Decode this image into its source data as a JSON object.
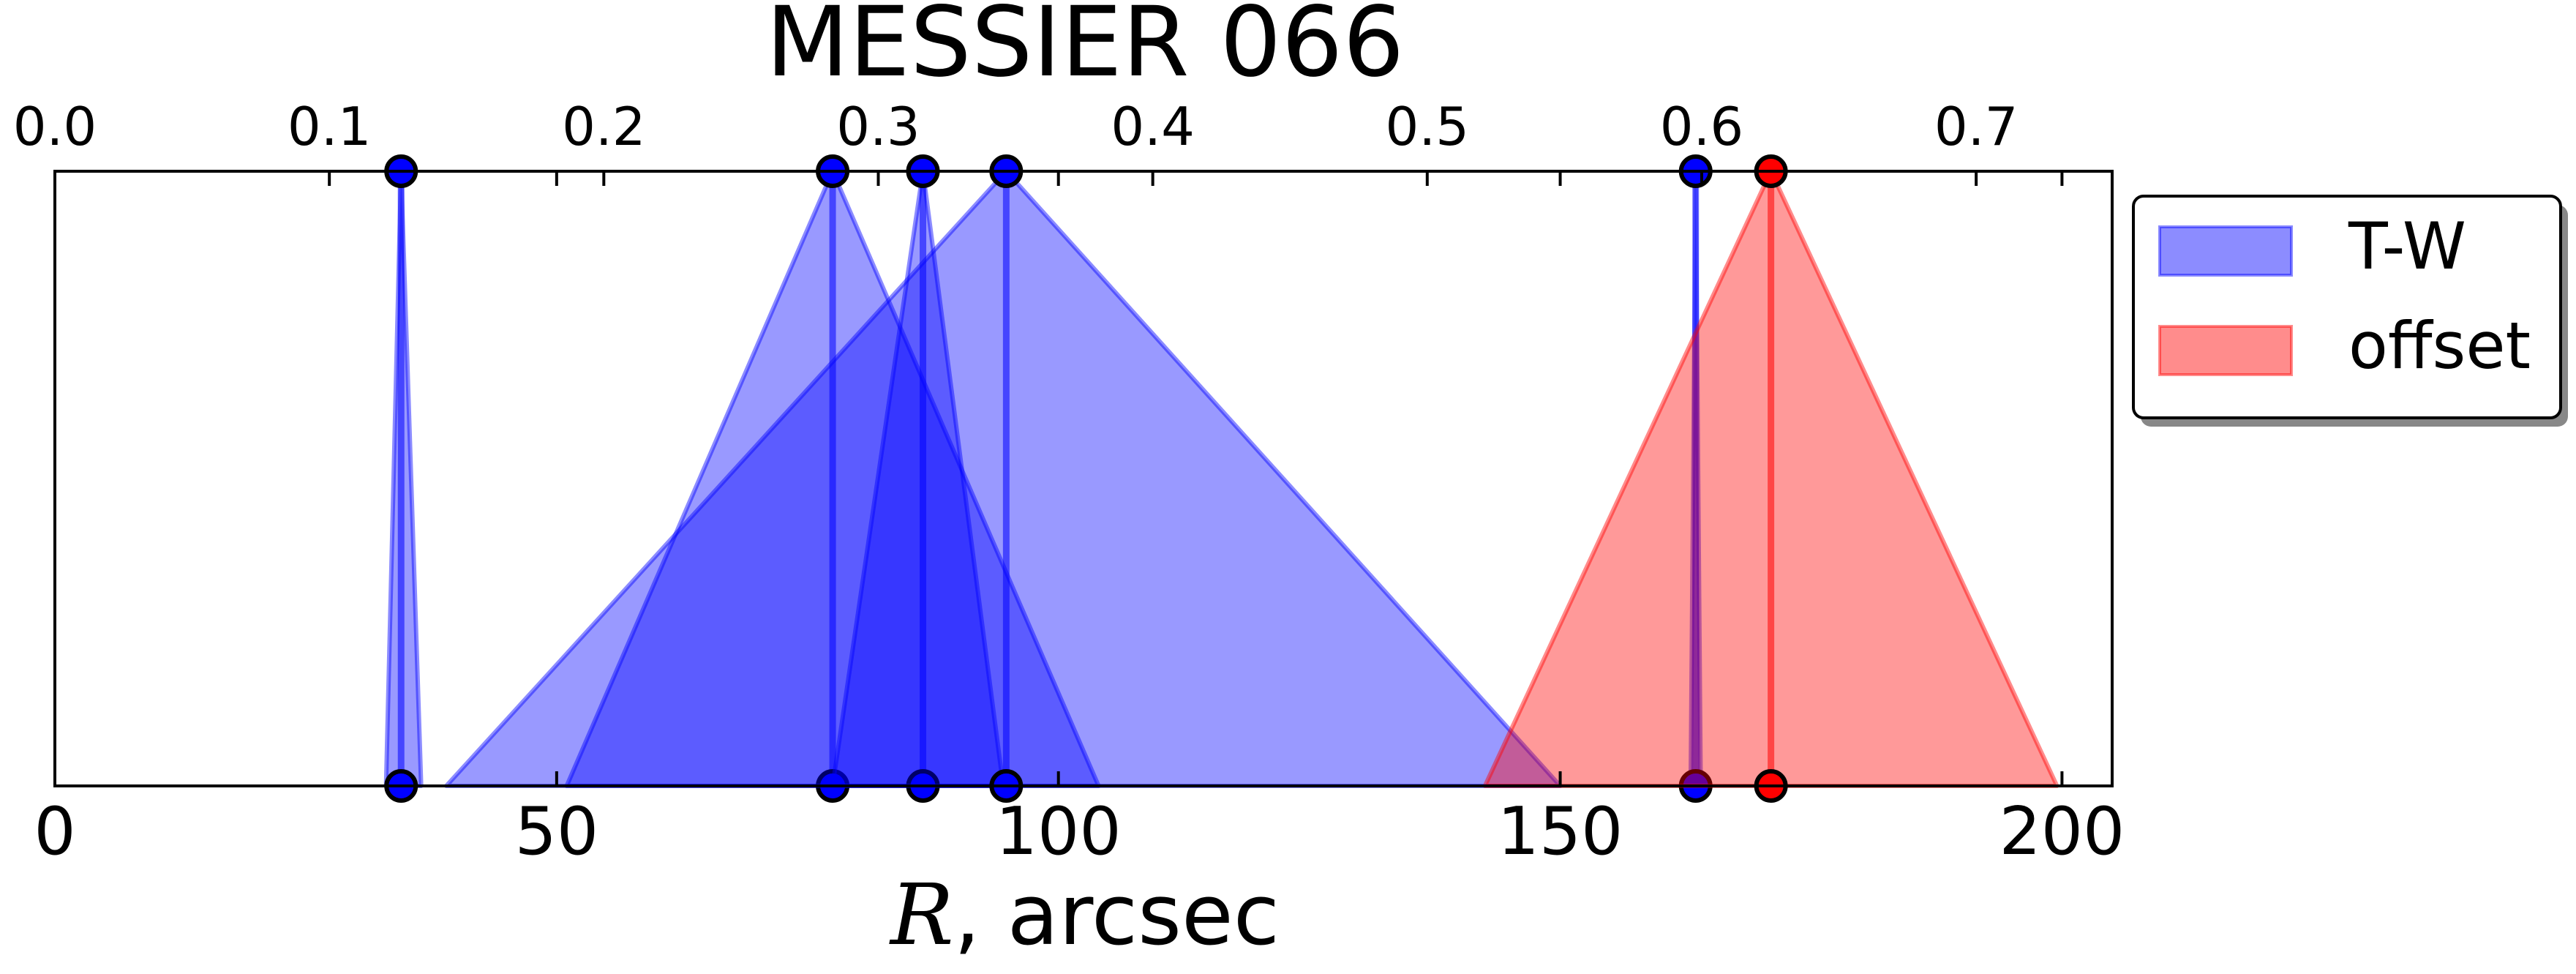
{
  "chart_data": {
    "type": "area",
    "title": "MESSIER 066",
    "xlabel_symbol": "R",
    "xlabel_unit": ", arcsec",
    "xlim": [
      0,
      205
    ],
    "ylim": [
      0,
      1
    ],
    "grid": false,
    "legend_position": "outside-right",
    "bottom_axis": {
      "ticks": [
        0,
        50,
        100,
        150,
        200
      ],
      "labels": [
        "0",
        "50",
        "100",
        "150",
        "200"
      ]
    },
    "top_axis": {
      "ticks": [
        0,
        27.35,
        54.7,
        82.05,
        109.4,
        136.75,
        164.1,
        191.45
      ],
      "labels": [
        "0.0",
        "0.1",
        "0.2",
        "0.3",
        "0.4",
        "0.5",
        "0.6",
        "0.7"
      ]
    },
    "series": [
      {
        "name": "T-W",
        "color": "#0000ff",
        "peaks": [
          {
            "center": 34.5,
            "left": 33,
            "right": 36.5
          },
          {
            "center": 77.5,
            "left": 51,
            "right": 104
          },
          {
            "center": 86.5,
            "left": 77.5,
            "right": 94.5
          },
          {
            "center": 94.8,
            "left": 39,
            "right": 150
          },
          {
            "center": 163.5,
            "left": 163.0,
            "right": 164.0
          }
        ]
      },
      {
        "name": "offset",
        "color": "#ff0000",
        "peaks": [
          {
            "center": 171,
            "left": 142.5,
            "right": 199.5
          }
        ]
      }
    ]
  }
}
